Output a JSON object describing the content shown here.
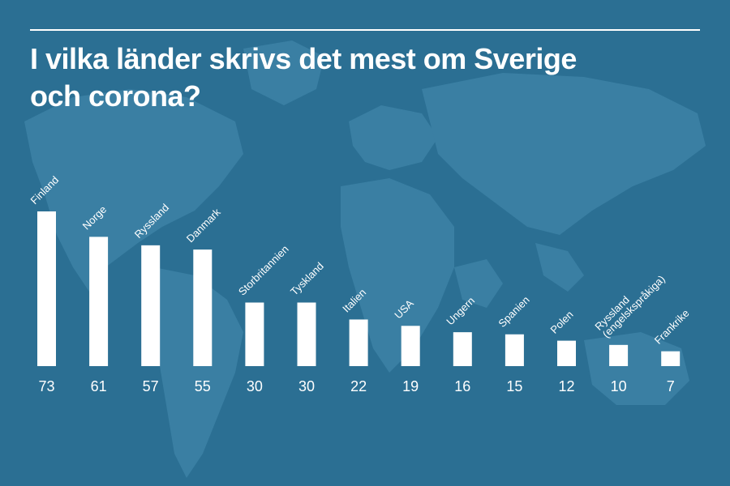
{
  "title": " I vilka länder skrivs det mest om Sverige\noch corona?",
  "colors": {
    "background": "#2b6f93",
    "map": "#3a7fa3",
    "bars": "#ffffff",
    "text": "#ffffff"
  },
  "chart_data": {
    "type": "bar",
    "title": " I vilka länder skrivs det mest om Sverige och corona?",
    "categories": [
      [
        "Finland"
      ],
      [
        "Norge"
      ],
      [
        "Ryssland"
      ],
      [
        "Danmark"
      ],
      [
        "Storbritannien"
      ],
      [
        "Tyskland"
      ],
      [
        "Italien"
      ],
      [
        "USA"
      ],
      [
        "Ungern"
      ],
      [
        "Spanien"
      ],
      [
        "Polen"
      ],
      [
        "Ryssland",
        "(engelskspråkiga)"
      ],
      [
        "Frankrike"
      ]
    ],
    "values": [
      73,
      61,
      57,
      55,
      30,
      30,
      22,
      19,
      16,
      15,
      12,
      10,
      7
    ],
    "xlabel": "",
    "ylabel": "",
    "grid": false,
    "legend": "none"
  }
}
